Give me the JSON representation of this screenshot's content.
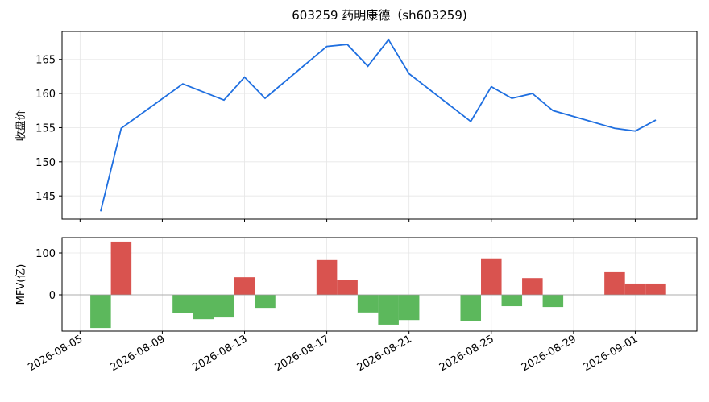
{
  "chart_data": [
    {
      "type": "line",
      "title": "603259 药明康德（sh603259)",
      "ylabel": "收盘价",
      "x": [
        "2026-08-06",
        "2026-08-07",
        "2026-08-10",
        "2026-08-12",
        "2026-08-13",
        "2026-08-14",
        "2026-08-17",
        "2026-08-18",
        "2026-08-19",
        "2026-08-20",
        "2026-08-21",
        "2026-08-24",
        "2026-08-25",
        "2026-08-26",
        "2026-08-27",
        "2026-08-28",
        "2026-08-31",
        "2026-09-01",
        "2026-09-02"
      ],
      "series": [
        {
          "color": "#1f6fe0",
          "values": [
            142.75,
            154.9,
            161.4,
            159.05,
            162.4,
            159.3,
            166.9,
            167.2,
            164.0,
            167.9,
            162.9,
            155.9,
            161.0,
            159.3,
            160.0,
            157.5,
            154.9,
            154.5,
            156.1
          ]
        }
      ],
      "xlim": [
        "2026-08-04T03:00",
        "2026-09-04T00:00"
      ],
      "xticks": [
        "2026-08-05",
        "2026-08-09",
        "2026-08-13",
        "2026-08-17",
        "2026-08-21",
        "2026-08-25",
        "2026-08-29",
        "2026-09-01"
      ],
      "ylim": [
        141.6,
        169.1
      ],
      "yticks": [
        145,
        150,
        155,
        160,
        165
      ],
      "grid": true
    },
    {
      "type": "bar",
      "ylabel": "MFV(亿)",
      "x": [
        "2026-08-06",
        "2026-08-07",
        "2026-08-10",
        "2026-08-11",
        "2026-08-12",
        "2026-08-13",
        "2026-08-14",
        "2026-08-17",
        "2026-08-18",
        "2026-08-19",
        "2026-08-20",
        "2026-08-21",
        "2026-08-24",
        "2026-08-25",
        "2026-08-26",
        "2026-08-27",
        "2026-08-28",
        "2026-08-31",
        "2026-09-01",
        "2026-09-02"
      ],
      "values": [
        -79,
        127,
        -44,
        -58,
        -54,
        42,
        -31,
        83,
        35,
        -42,
        -71,
        -60,
        -63,
        87,
        -27,
        40,
        -29,
        54,
        27,
        27
      ],
      "up_color": "#d9534f",
      "down_color": "#5cb85c",
      "xlim": [
        "2026-08-04T03:00",
        "2026-09-04T00:00"
      ],
      "xticks": [
        "2026-08-05",
        "2026-08-09",
        "2026-08-13",
        "2026-08-17",
        "2026-08-21",
        "2026-08-25",
        "2026-08-29",
        "2026-09-01"
      ],
      "ylim": [
        -86.5,
        136.5
      ],
      "yticks": [
        0,
        100
      ],
      "hline": 0,
      "grid": true
    }
  ]
}
